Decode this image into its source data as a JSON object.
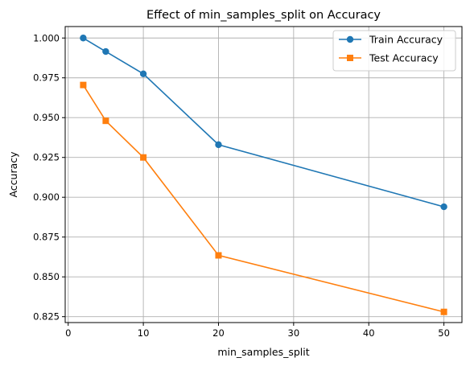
{
  "chart_data": {
    "type": "line",
    "title": "Effect of min_samples_split on Accuracy",
    "xlabel": "min_samples_split",
    "ylabel": "Accuracy",
    "x": [
      2,
      5,
      10,
      20,
      50
    ],
    "xlim": [
      -0.4,
      52.4
    ],
    "ylim": [
      0.8213,
      1.0072
    ],
    "xticks": [
      0,
      10,
      20,
      30,
      40,
      50
    ],
    "xtick_labels": [
      "0",
      "10",
      "20",
      "30",
      "40",
      "50"
    ],
    "yticks": [
      0.825,
      0.85,
      0.875,
      0.9,
      0.925,
      0.95,
      0.975,
      1.0
    ],
    "ytick_labels": [
      "0.825",
      "0.850",
      "0.875",
      "0.900",
      "0.925",
      "0.950",
      "0.975",
      "1.000"
    ],
    "grid": true,
    "legend_position": "top-right",
    "series": [
      {
        "name": "Train Accuracy",
        "values": [
          1.0,
          0.9915,
          0.9775,
          0.933,
          0.894
        ],
        "color": "#1f77b4",
        "marker": "circle"
      },
      {
        "name": "Test Accuracy",
        "values": [
          0.9705,
          0.948,
          0.925,
          0.8635,
          0.828
        ],
        "color": "#ff7f0e",
        "marker": "square"
      }
    ]
  }
}
